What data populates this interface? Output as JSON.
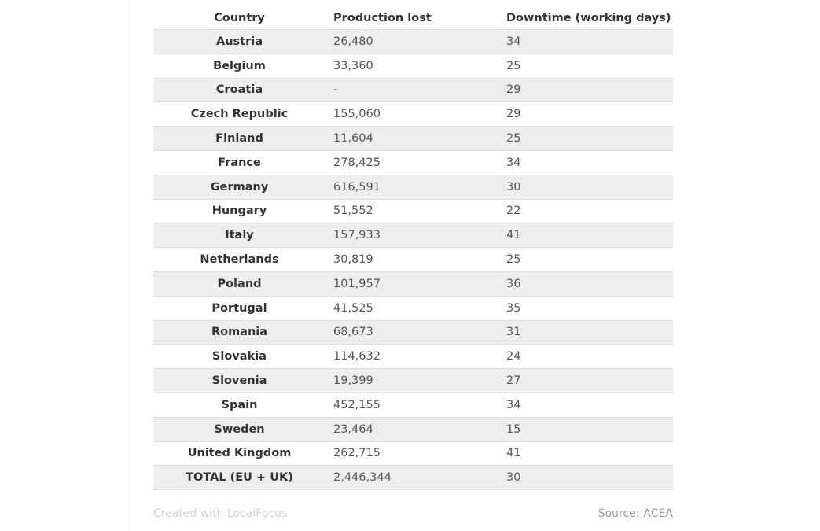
{
  "chart_data": {
    "type": "table",
    "columns": [
      "Country",
      "Production lost",
      "Downtime (working days)"
    ],
    "rows": [
      [
        "Austria",
        "26,480",
        "34"
      ],
      [
        "Belgium",
        "33,360",
        "25"
      ],
      [
        "Croatia",
        "-",
        "29"
      ],
      [
        "Czech Republic",
        "155,060",
        "29"
      ],
      [
        "Finland",
        "11,604",
        "25"
      ],
      [
        "France",
        "278,425",
        "34"
      ],
      [
        "Germany",
        "616,591",
        "30"
      ],
      [
        "Hungary",
        "51,552",
        "22"
      ],
      [
        "Italy",
        "157,933",
        "41"
      ],
      [
        "Netherlands",
        "30,819",
        "25"
      ],
      [
        "Poland",
        "101,957",
        "36"
      ],
      [
        "Portugal",
        "41,525",
        "35"
      ],
      [
        "Romania",
        "68,673",
        "31"
      ],
      [
        "Slovakia",
        "114,632",
        "24"
      ],
      [
        "Slovenia",
        "19,399",
        "27"
      ],
      [
        "Spain",
        "452,155",
        "34"
      ],
      [
        "Sweden",
        "23,464",
        "15"
      ],
      [
        "United Kingdom",
        "262,715",
        "41"
      ],
      [
        "TOTAL (EU + UK)",
        "2,446,344",
        "30"
      ]
    ],
    "stripe_color": "#eeeeee"
  },
  "footer": {
    "credit": "Created with LocalFocus",
    "source_label": "Source:",
    "source_value": "ACEA"
  }
}
